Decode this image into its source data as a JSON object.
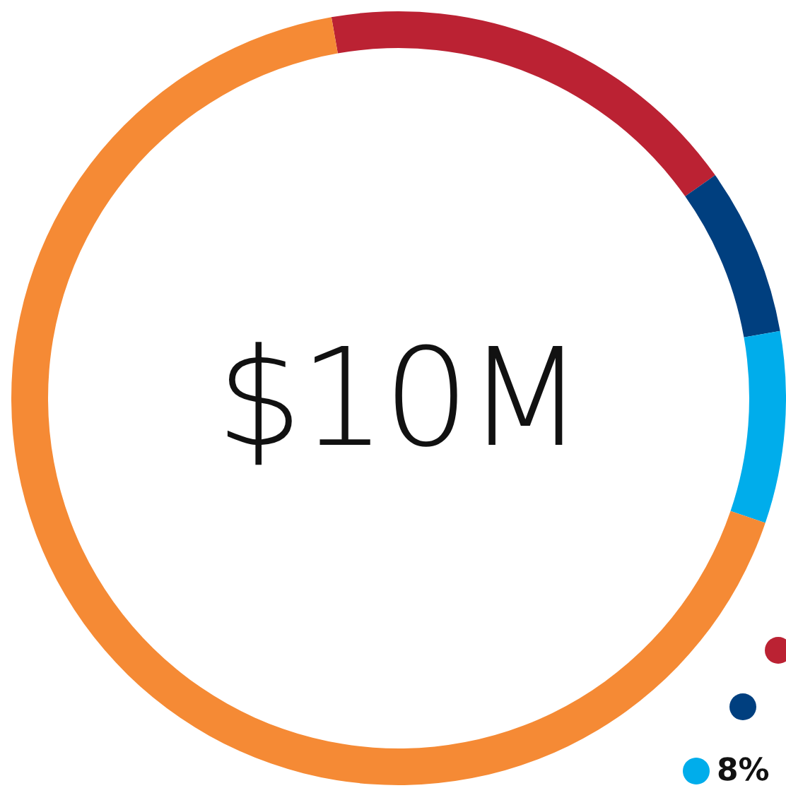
{
  "chart_data": {
    "type": "donut",
    "annotations": [
      "$10M"
    ],
    "categories": [
      null,
      null,
      "8%",
      null
    ],
    "values": [
      18,
      7,
      8,
      67
    ],
    "colors": [
      "#bb2233",
      "#003f7f",
      "#00adeb",
      "#f58a35"
    ]
  }
}
